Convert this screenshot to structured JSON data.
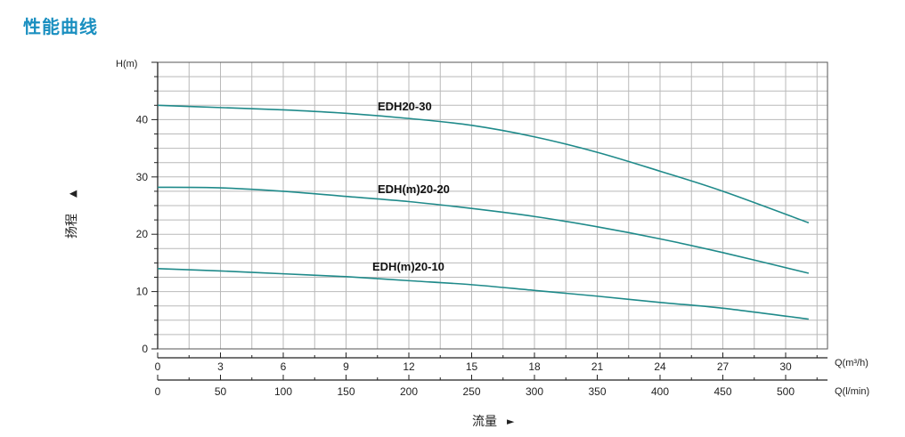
{
  "page_title": "性能曲线",
  "colors": {
    "title": "#1a8fc0",
    "curve": "#1f8a8a",
    "grid": "#b9b9b9"
  },
  "chart_data": {
    "type": "line",
    "y_axis_unit": "H(m)",
    "y_axis_name": "扬程",
    "y_arrow": "▲",
    "x_axis_name": "流量",
    "x_arrow": "►",
    "x_primary_unit": "Q(m³/h)",
    "x_secondary_unit": "Q(l/min)",
    "xlim": [
      0,
      32
    ],
    "ylim": [
      0,
      50
    ],
    "x_ticks": [
      0,
      3,
      6,
      9,
      12,
      15,
      18,
      21,
      24,
      27,
      30
    ],
    "x_secondary_ticks": [
      0,
      50,
      100,
      150,
      200,
      250,
      300,
      350,
      400,
      450,
      500
    ],
    "y_ticks": [
      0,
      10,
      20,
      30,
      40
    ],
    "grid": true,
    "series": [
      {
        "name": "EDH20-30",
        "x": [
          0,
          3,
          6,
          9,
          12,
          15,
          18,
          21,
          24,
          27,
          31.1
        ],
        "y": [
          42.5,
          42.1,
          41.7,
          41.1,
          40.2,
          39.0,
          37.0,
          34.3,
          31.0,
          27.5,
          22.0
        ]
      },
      {
        "name": "EDH(m)20-20",
        "x": [
          0,
          3,
          6,
          9,
          12,
          15,
          18,
          21,
          24,
          27,
          31.1
        ],
        "y": [
          28.2,
          28.1,
          27.5,
          26.6,
          25.7,
          24.5,
          23.1,
          21.3,
          19.2,
          16.8,
          13.2
        ]
      },
      {
        "name": "EDH(m)20-10",
        "x": [
          0,
          3,
          6,
          9,
          12,
          15,
          18,
          21,
          24,
          27,
          31.1
        ],
        "y": [
          14.0,
          13.6,
          13.1,
          12.6,
          11.9,
          11.2,
          10.2,
          9.2,
          8.1,
          7.1,
          5.2
        ]
      }
    ]
  }
}
